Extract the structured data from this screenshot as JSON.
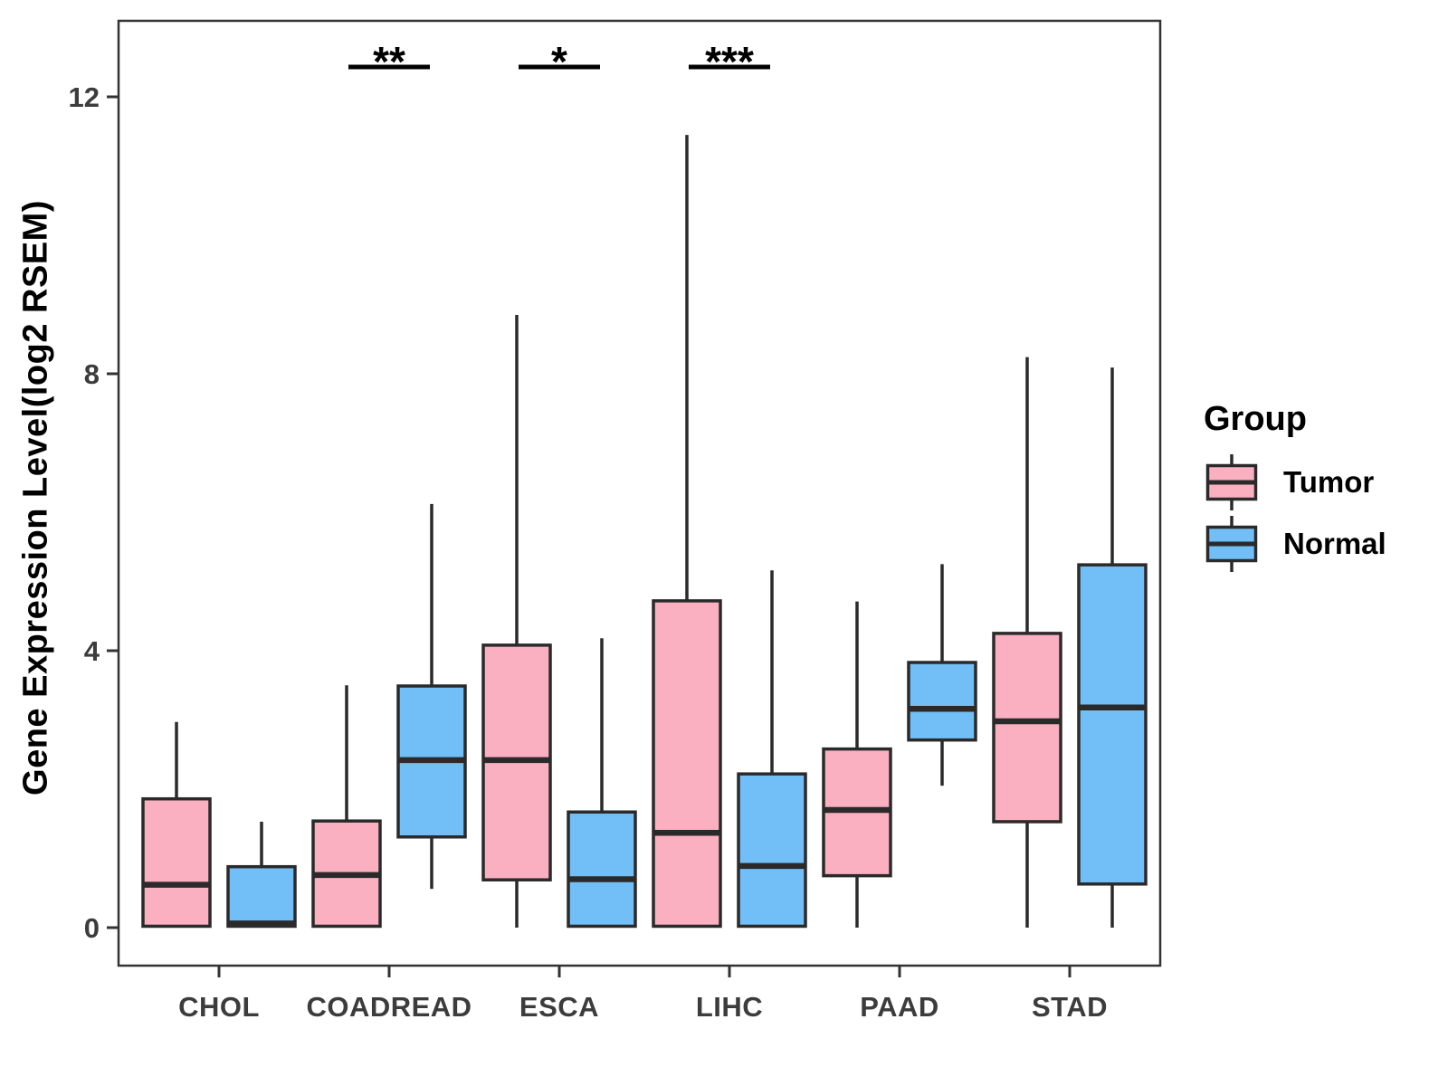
{
  "figure": {
    "ylabel": "Gene Expression Level(log2 RSEM)"
  },
  "legend": {
    "title": "Group",
    "entries": [
      {
        "label": "Tumor",
        "color": "#FBB0C2"
      },
      {
        "label": "Normal",
        "color": "#72BEF6"
      }
    ]
  },
  "chart_data": {
    "type": "boxplot",
    "title": "",
    "xlabel": "",
    "ylabel": "Gene Expression Level(log2 RSEM)",
    "ylim": [
      -0.55,
      13.1
    ],
    "yticks": [
      0,
      4,
      8,
      12
    ],
    "categories": [
      "CHOL",
      "COADREAD",
      "ESCA",
      "LIHC",
      "PAAD",
      "STAD"
    ],
    "groups": [
      "Tumor",
      "Normal"
    ],
    "colors": {
      "Tumor": "#FBB0C2",
      "Normal": "#72BEF6"
    },
    "legend_position": "right",
    "grid": false,
    "series": [
      {
        "name": "Tumor",
        "boxes": [
          {
            "category": "CHOL",
            "whisker_low": 0.0,
            "q1": 0.02,
            "median": 0.62,
            "q3": 1.86,
            "whisker_high": 2.97
          },
          {
            "category": "COADREAD",
            "whisker_low": 0.0,
            "q1": 0.02,
            "median": 0.76,
            "q3": 1.54,
            "whisker_high": 3.5
          },
          {
            "category": "ESCA",
            "whisker_low": 0.0,
            "q1": 0.69,
            "median": 2.42,
            "q3": 4.08,
            "whisker_high": 8.85
          },
          {
            "category": "LIHC",
            "whisker_low": 0.0,
            "q1": 0.02,
            "median": 1.37,
            "q3": 4.72,
            "whisker_high": 11.45
          },
          {
            "category": "PAAD",
            "whisker_low": 0.0,
            "q1": 0.75,
            "median": 1.7,
            "q3": 2.58,
            "whisker_high": 4.71
          },
          {
            "category": "STAD",
            "whisker_low": 0.0,
            "q1": 1.53,
            "median": 2.98,
            "q3": 4.25,
            "whisker_high": 8.24
          }
        ]
      },
      {
        "name": "Normal",
        "boxes": [
          {
            "category": "CHOL",
            "whisker_low": 0.0,
            "q1": 0.02,
            "median": 0.06,
            "q3": 0.88,
            "whisker_high": 1.53
          },
          {
            "category": "COADREAD",
            "whisker_low": 0.56,
            "q1": 1.31,
            "median": 2.42,
            "q3": 3.49,
            "whisker_high": 6.12
          },
          {
            "category": "ESCA",
            "whisker_low": 0.0,
            "q1": 0.02,
            "median": 0.7,
            "q3": 1.67,
            "whisker_high": 4.18
          },
          {
            "category": "LIHC",
            "whisker_low": 0.0,
            "q1": 0.02,
            "median": 0.89,
            "q3": 2.22,
            "whisker_high": 5.16
          },
          {
            "category": "PAAD",
            "whisker_low": 2.05,
            "q1": 2.71,
            "median": 3.16,
            "q3": 3.83,
            "whisker_high": 5.25
          },
          {
            "category": "STAD",
            "whisker_low": 0.0,
            "q1": 0.63,
            "median": 3.18,
            "q3": 5.24,
            "whisker_high": 8.09
          }
        ]
      }
    ],
    "significance": [
      {
        "category": "COADREAD",
        "label": "**"
      },
      {
        "category": "ESCA",
        "label": "*"
      },
      {
        "category": "LIHC",
        "label": "***"
      }
    ]
  }
}
